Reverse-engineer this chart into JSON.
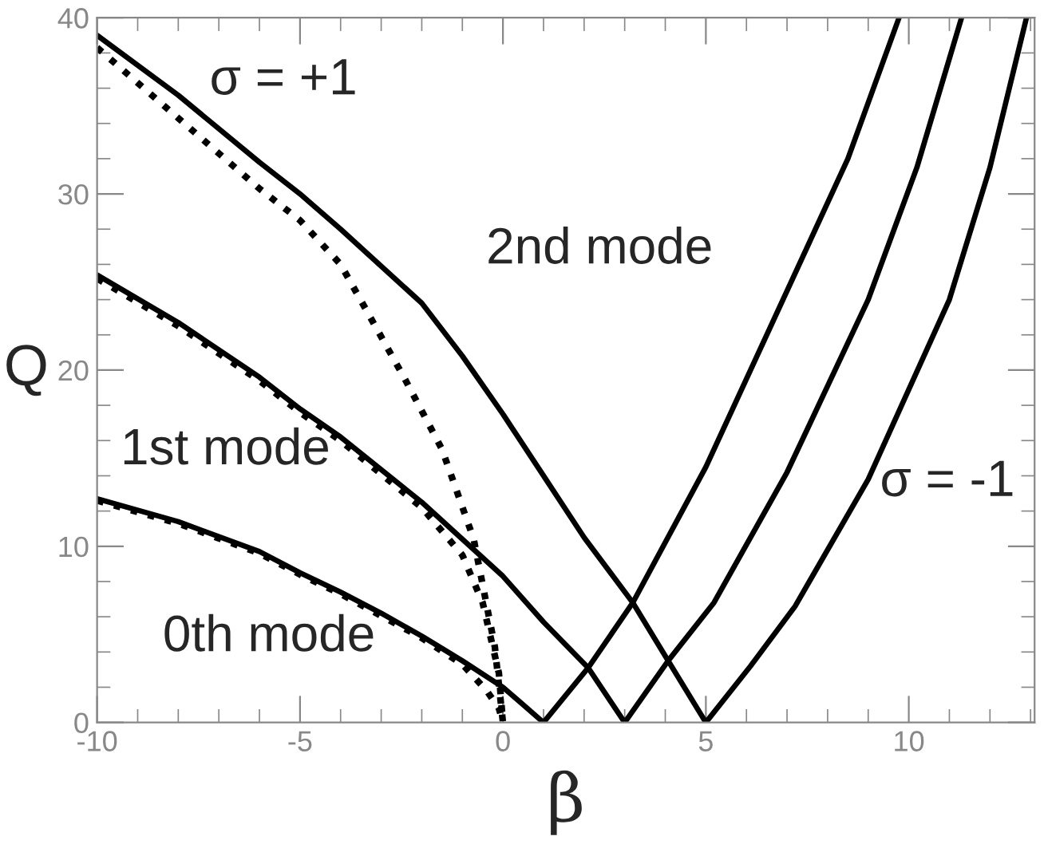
{
  "chart_data": {
    "type": "line",
    "xlabel": "β",
    "ylabel": "Q",
    "xlim": [
      -10,
      13.1
    ],
    "ylim": [
      0,
      40
    ],
    "xticks": [
      -10,
      -5,
      0,
      5,
      10
    ],
    "yticks": [
      0,
      10,
      20,
      30,
      40
    ],
    "grid": false,
    "legend": false,
    "marker": "none",
    "annotations": [
      "σ = +1",
      "2nd mode",
      "1st mode",
      "0th mode",
      "σ = -1"
    ],
    "series": [
      {
        "color": "#000000",
        "line_style": "solid",
        "x": [
          -10,
          -8,
          -6,
          -5,
          -4,
          -3,
          -2,
          -1,
          0,
          0.5,
          1
        ],
        "values": [
          12.7,
          11.4,
          9.7,
          8.5,
          7.4,
          6.2,
          4.9,
          3.5,
          2.0,
          1.0,
          0
        ]
      },
      {
        "color": "#000000",
        "line_style": "solid",
        "x": [
          -10,
          -8,
          -6,
          -5,
          -4,
          -2,
          0,
          1,
          2.1,
          3
        ],
        "values": [
          25.4,
          22.7,
          19.6,
          17.8,
          16.2,
          12.5,
          8.3,
          5.7,
          3.1,
          0
        ]
      },
      {
        "color": "#000000",
        "line_style": "solid",
        "x": [
          -10,
          -8,
          -6,
          -5,
          -4,
          -2,
          -1,
          0,
          1,
          2,
          3.2,
          4.07,
          5
        ],
        "values": [
          39,
          35.6,
          31.8,
          30,
          28,
          23.8,
          20.8,
          17.5,
          14,
          10.5,
          6.8,
          3.5,
          0
        ]
      },
      {
        "color": "#000000",
        "line_style": "solid",
        "x": [
          1,
          2.1,
          3.2,
          5,
          7,
          8.5,
          9.76
        ],
        "values": [
          0,
          3.1,
          6.8,
          14.5,
          24.5,
          32,
          40
        ]
      },
      {
        "color": "#000000",
        "line_style": "solid",
        "x": [
          3,
          4.07,
          5.2,
          7,
          9,
          10.2,
          11.3
        ],
        "values": [
          0,
          3.5,
          6.8,
          14.2,
          24,
          31.5,
          40
        ]
      },
      {
        "color": "#000000",
        "line_style": "solid",
        "x": [
          5,
          6.1,
          7.2,
          9,
          11,
          12,
          12.9
        ],
        "values": [
          0,
          3.2,
          6.6,
          13.8,
          24,
          31.5,
          40
        ]
      },
      {
        "color": "#000000",
        "line_style": "dotted",
        "x": [
          -10,
          -8,
          -6,
          -5,
          -4,
          -2.44,
          -1.5,
          -0.72,
          -0.2,
          0
        ],
        "values": [
          38.3,
          34.3,
          30.3,
          28.5,
          26,
          19.6,
          15.5,
          10.4,
          4.3,
          0
        ]
      },
      {
        "color": "#000000",
        "line_style": "dotted",
        "x": [
          -10,
          -8,
          -6,
          -5,
          -4,
          -2,
          -1,
          -0.5,
          -0.1,
          0
        ],
        "values": [
          25.2,
          22.5,
          19.4,
          17.6,
          16,
          12.2,
          9.5,
          6.8,
          2.8,
          0
        ]
      },
      {
        "color": "#000000",
        "line_style": "dotted",
        "x": [
          -10,
          -8,
          -6,
          -5,
          -4,
          -2,
          -1,
          -0.4,
          -0.1,
          0
        ],
        "values": [
          12.6,
          11.3,
          9.6,
          8.4,
          7.3,
          4.8,
          3.3,
          1.8,
          0.8,
          0
        ]
      }
    ]
  }
}
